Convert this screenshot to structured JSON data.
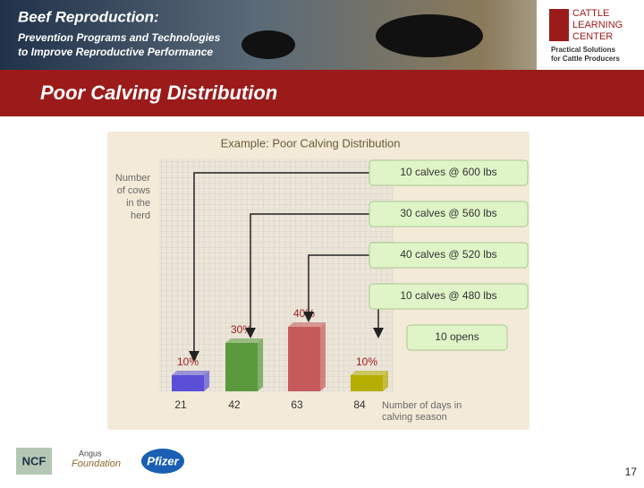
{
  "slide": {
    "header_title": "Beef Reproduction:",
    "header_line1": "Prevention Programs and Technologies",
    "header_line2": "to Improve Reproductive Performance",
    "logo_line1": "CATTLE",
    "logo_line2": "LEARNING",
    "logo_line3": "CENTER",
    "logo_tag1": "Practical Solutions",
    "logo_tag2": "for Cattle Producers",
    "title": "Poor Calving Distribution",
    "footer_logo1": "NCF",
    "footer_logo2": "Angus",
    "footer_logo3": "Foundation",
    "footer_logo4": "Pfizer",
    "page_number": "17"
  },
  "chart_data": {
    "type": "bar",
    "title": "Example: Poor Calving Distribution",
    "y_label": [
      "Number",
      "of cows",
      "in the",
      "herd"
    ],
    "x_label": [
      "Number of days in",
      "calving season"
    ],
    "categories": [
      "21",
      "42",
      "63",
      "84"
    ],
    "values": [
      10,
      30,
      40,
      10
    ],
    "value_labels": [
      "10%",
      "30%",
      "40%",
      "10%"
    ],
    "colors": [
      "#5a4fd6",
      "#5a9a3c",
      "#c65a5a",
      "#b5ad00"
    ],
    "annotations": [
      "10 calves @ 600 lbs",
      "30 calves @ 560 lbs",
      "40 calves @ 520 lbs",
      "10 calves @ 480 lbs",
      "10 opens"
    ]
  }
}
